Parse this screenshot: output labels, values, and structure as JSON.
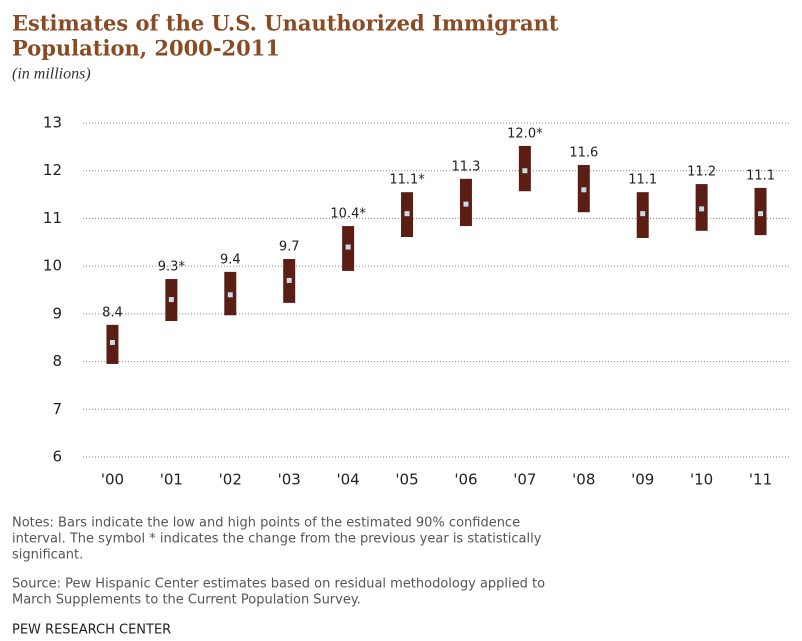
{
  "chart_data": {
    "type": "range_bar",
    "title": [
      "Estimates of the U.S. Unauthorized Immigrant",
      "Population, 2000-2011"
    ],
    "subtitle": "(in millions)",
    "categories": [
      "'00",
      "'01",
      "'02",
      "'03",
      "'04",
      "'05",
      "'06",
      "'07",
      "'08",
      "'09",
      "'10",
      "'11"
    ],
    "values": [
      8.4,
      9.3,
      9.4,
      9.7,
      10.4,
      11.1,
      11.3,
      12.0,
      11.6,
      11.1,
      11.2,
      11.1
    ],
    "value_labels": [
      "8.4",
      "9.3*",
      "9.4",
      "9.7",
      "10.4*",
      "11.1*",
      "11.3",
      "12.0*",
      "11.6",
      "11.1",
      "11.2",
      "11.1"
    ],
    "low": [
      7.95,
      8.85,
      8.97,
      9.23,
      9.9,
      10.61,
      10.84,
      11.57,
      11.13,
      10.59,
      10.74,
      10.65
    ],
    "high": [
      8.77,
      9.73,
      9.88,
      10.15,
      10.84,
      11.55,
      11.83,
      12.52,
      12.12,
      11.55,
      11.72,
      11.64
    ],
    "color": "#5a1e14",
    "point_color": "#c9dbe9",
    "ylim": [
      6,
      13
    ],
    "yticks": [
      6,
      7,
      8,
      9,
      10,
      11,
      12,
      13
    ],
    "grid": true,
    "notes": [
      "Notes: Bars indicate the low and high points of the estimated 90% confidence",
      "interval. The symbol * indicates the change from the previous year is statistically",
      "significant."
    ],
    "source": [
      "Source: Pew Hispanic Center estimates based on residual methodology applied to",
      "March Supplements to the Current Population Survey."
    ],
    "credit": "PEW RESEARCH CENTER"
  }
}
